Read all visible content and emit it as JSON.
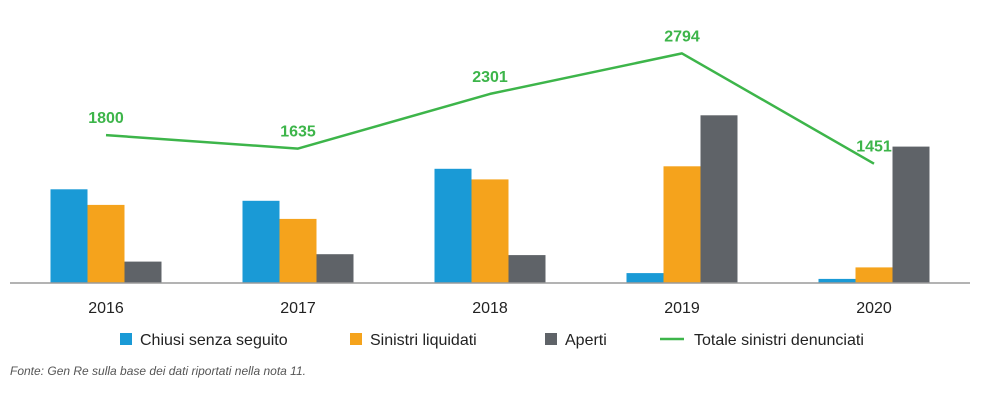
{
  "chart_data": {
    "type": "bar",
    "categories": [
      "2016",
      "2017",
      "2018",
      "2019",
      "2020"
    ],
    "series": [
      {
        "name": "Chiusi senza seguito",
        "type": "bar",
        "color": "#1a9ad6",
        "values": [
          1140,
          1000,
          1390,
          120,
          50
        ]
      },
      {
        "name": "Sinistri liquidati",
        "type": "bar",
        "color": "#f5a31c",
        "values": [
          950,
          780,
          1260,
          1420,
          190
        ]
      },
      {
        "name": "Aperti",
        "type": "bar",
        "color": "#5f6368",
        "values": [
          260,
          350,
          340,
          2040,
          1660
        ]
      },
      {
        "name": "Totale sinistri denunciati",
        "type": "line",
        "color": "#3db54a",
        "values": [
          1800,
          1635,
          2301,
          2794,
          1451
        ]
      }
    ],
    "data_labels": [
      "1800",
      "1635",
      "2301",
      "2794",
      "1451"
    ],
    "ylim": [
      0,
      3200
    ],
    "grid": false,
    "legend_position": "bottom",
    "source_note": "Fonte: Gen Re sulla base dei dati riportati nella nota 11."
  }
}
